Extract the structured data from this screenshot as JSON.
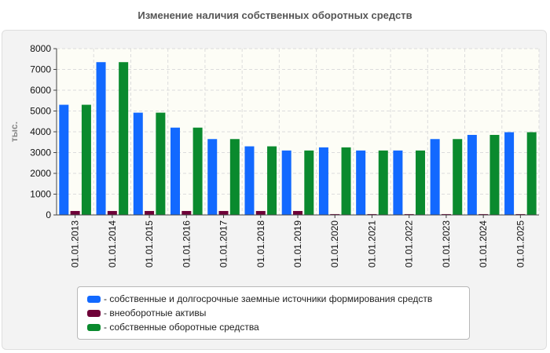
{
  "chart_data": {
    "type": "bar",
    "title": "Изменение наличия собственных оборотных средств",
    "xlabel": "",
    "ylabel": "тыс.",
    "ylim": [
      0,
      8000
    ],
    "yticks": [
      0,
      1000,
      2000,
      3000,
      4000,
      5000,
      6000,
      7000,
      8000
    ],
    "grid": true,
    "legend_position": "bottom",
    "categories": [
      "01.01.2013",
      "01.01.2014",
      "01.01.2015",
      "01.01.2016",
      "01.01.2017",
      "01.01.2018",
      "01.01.2019",
      "01.01.2020",
      "01.01.2021",
      "01.01.2022",
      "01.01.2023",
      "01.01.2024",
      "01.01.2025"
    ],
    "series": [
      {
        "name": "- собственные и долгосрочные заемные источники формирования средств",
        "color": "#1269ff",
        "values": [
          5300,
          7350,
          4920,
          4200,
          3650,
          3300,
          3100,
          3250,
          3100,
          3100,
          3650,
          3850,
          3980
        ]
      },
      {
        "name": "- внеоборотные активы",
        "color": "#6e0038",
        "values": [
          190,
          190,
          190,
          190,
          190,
          190,
          190,
          40,
          40,
          40,
          40,
          40,
          40
        ]
      },
      {
        "name": "- собственные оборотные средства",
        "color": "#0a8a2e",
        "values": [
          5300,
          7350,
          4920,
          4200,
          3650,
          3300,
          3100,
          3250,
          3100,
          3100,
          3650,
          3850,
          3980
        ]
      }
    ]
  }
}
